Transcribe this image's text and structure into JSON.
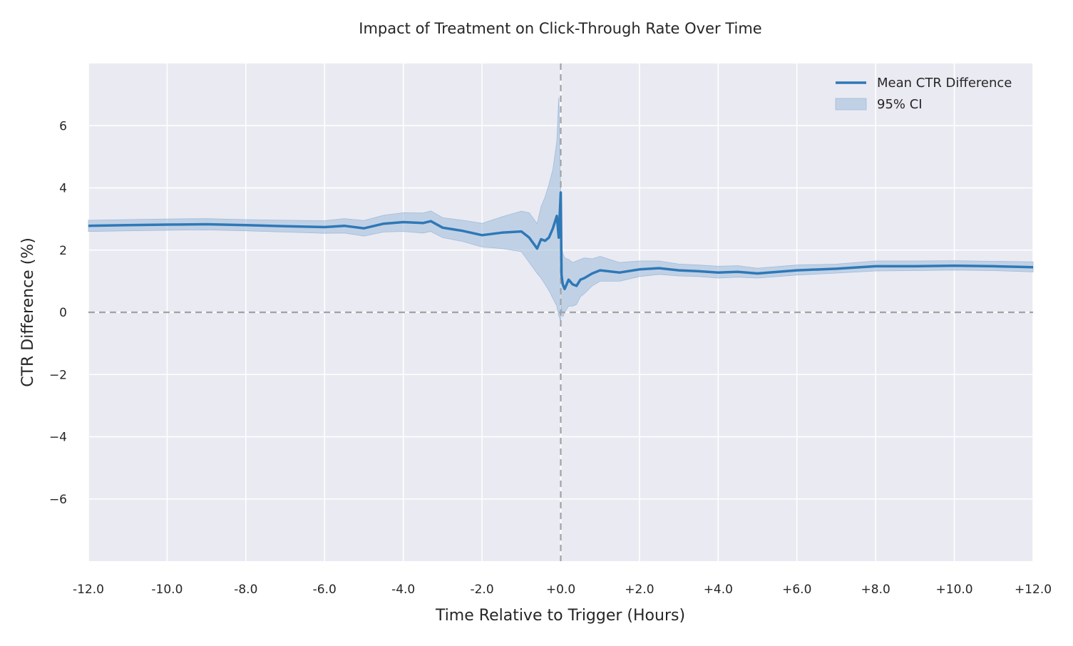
{
  "chart_data": {
    "type": "line",
    "title": "Impact of Treatment on Click-Through Rate Over Time",
    "xlabel": "Time Relative to Trigger (Hours)",
    "ylabel": "CTR Difference (%)",
    "xlim": [
      -12,
      12
    ],
    "ylim": [
      -8,
      8
    ],
    "grid": true,
    "legend_position": "upper right",
    "x_ticks": [
      -12,
      -10,
      -8,
      -6,
      -4,
      -2,
      0,
      2,
      4,
      6,
      8,
      10,
      12
    ],
    "x_tick_labels": [
      "-12.0",
      "-10.0",
      "-8.0",
      "-6.0",
      "-4.0",
      "-2.0",
      "+0.0",
      "+2.0",
      "+4.0",
      "+6.0",
      "+8.0",
      "+10.0",
      "+12.0"
    ],
    "y_ticks": [
      -6,
      -4,
      -2,
      0,
      2,
      4,
      6
    ],
    "y_tick_labels": [
      "−6",
      "−4",
      "−2",
      "0",
      "2",
      "4",
      "6"
    ],
    "reference_lines": [
      {
        "orientation": "horizontal",
        "value": 0,
        "style": "dashed",
        "color": "#a0a3a8"
      },
      {
        "orientation": "vertical",
        "value": 0,
        "style": "dashed",
        "color": "#a0a3a8"
      }
    ],
    "colors": {
      "line": "#2e78b7",
      "band": "#9fbcdb",
      "plot_bg": "#eaeaf2",
      "grid": "#ffffff"
    },
    "series": [
      {
        "name": "Mean CTR Difference",
        "kind": "line",
        "x": [
          -12.0,
          -11.0,
          -10.0,
          -9.0,
          -8.0,
          -7.0,
          -6.0,
          -5.5,
          -5.0,
          -4.5,
          -4.0,
          -3.5,
          -3.3,
          -3.0,
          -2.5,
          -2.0,
          -1.5,
          -1.0,
          -0.8,
          -0.6,
          -0.5,
          -0.4,
          -0.3,
          -0.2,
          -0.1,
          -0.05,
          0.0,
          0.02,
          0.05,
          0.1,
          0.2,
          0.3,
          0.4,
          0.5,
          0.6,
          0.8,
          1.0,
          1.5,
          2.0,
          2.5,
          3.0,
          3.5,
          4.0,
          4.5,
          5.0,
          6.0,
          7.0,
          8.0,
          9.0,
          10.0,
          11.0,
          12.0
        ],
        "y": [
          2.78,
          2.8,
          2.82,
          2.83,
          2.8,
          2.77,
          2.74,
          2.78,
          2.7,
          2.85,
          2.9,
          2.87,
          2.93,
          2.72,
          2.62,
          2.48,
          2.56,
          2.6,
          2.4,
          2.05,
          2.35,
          2.3,
          2.4,
          2.7,
          3.1,
          2.4,
          3.85,
          1.2,
          0.9,
          0.75,
          1.05,
          0.9,
          0.85,
          1.05,
          1.1,
          1.25,
          1.35,
          1.28,
          1.38,
          1.42,
          1.35,
          1.32,
          1.28,
          1.3,
          1.25,
          1.35,
          1.4,
          1.48,
          1.48,
          1.5,
          1.48,
          1.45
        ]
      },
      {
        "name": "95% CI",
        "kind": "band",
        "x": [
          -12.0,
          -11.0,
          -10.0,
          -9.0,
          -8.0,
          -7.0,
          -6.0,
          -5.5,
          -5.0,
          -4.5,
          -4.0,
          -3.5,
          -3.3,
          -3.0,
          -2.5,
          -2.0,
          -1.5,
          -1.0,
          -0.8,
          -0.6,
          -0.5,
          -0.4,
          -0.3,
          -0.2,
          -0.1,
          -0.05,
          0.0,
          0.02,
          0.05,
          0.1,
          0.2,
          0.3,
          0.4,
          0.5,
          0.6,
          0.8,
          1.0,
          1.5,
          2.0,
          2.5,
          3.0,
          3.5,
          4.0,
          4.5,
          5.0,
          6.0,
          7.0,
          8.0,
          9.0,
          10.0,
          11.0,
          12.0
        ],
        "lower": [
          2.6,
          2.62,
          2.64,
          2.65,
          2.62,
          2.58,
          2.54,
          2.55,
          2.45,
          2.58,
          2.6,
          2.55,
          2.6,
          2.4,
          2.28,
          2.1,
          2.05,
          1.95,
          1.6,
          1.25,
          1.1,
          0.9,
          0.7,
          0.45,
          0.2,
          -0.1,
          -0.3,
          0.2,
          -0.15,
          0.0,
          0.2,
          0.2,
          0.25,
          0.5,
          0.6,
          0.85,
          1.0,
          1.0,
          1.15,
          1.22,
          1.17,
          1.15,
          1.1,
          1.13,
          1.1,
          1.2,
          1.26,
          1.33,
          1.34,
          1.36,
          1.34,
          1.3
        ],
        "upper": [
          2.96,
          2.98,
          3.0,
          3.01,
          2.98,
          2.96,
          2.94,
          3.01,
          2.95,
          3.12,
          3.2,
          3.19,
          3.26,
          3.04,
          2.96,
          2.86,
          3.07,
          3.25,
          3.2,
          2.85,
          3.4,
          3.7,
          4.1,
          4.6,
          5.5,
          6.9,
          4.0,
          2.1,
          1.9,
          1.75,
          1.7,
          1.6,
          1.65,
          1.7,
          1.75,
          1.72,
          1.8,
          1.6,
          1.65,
          1.65,
          1.55,
          1.52,
          1.48,
          1.5,
          1.42,
          1.52,
          1.55,
          1.65,
          1.65,
          1.66,
          1.64,
          1.62
        ]
      }
    ]
  }
}
